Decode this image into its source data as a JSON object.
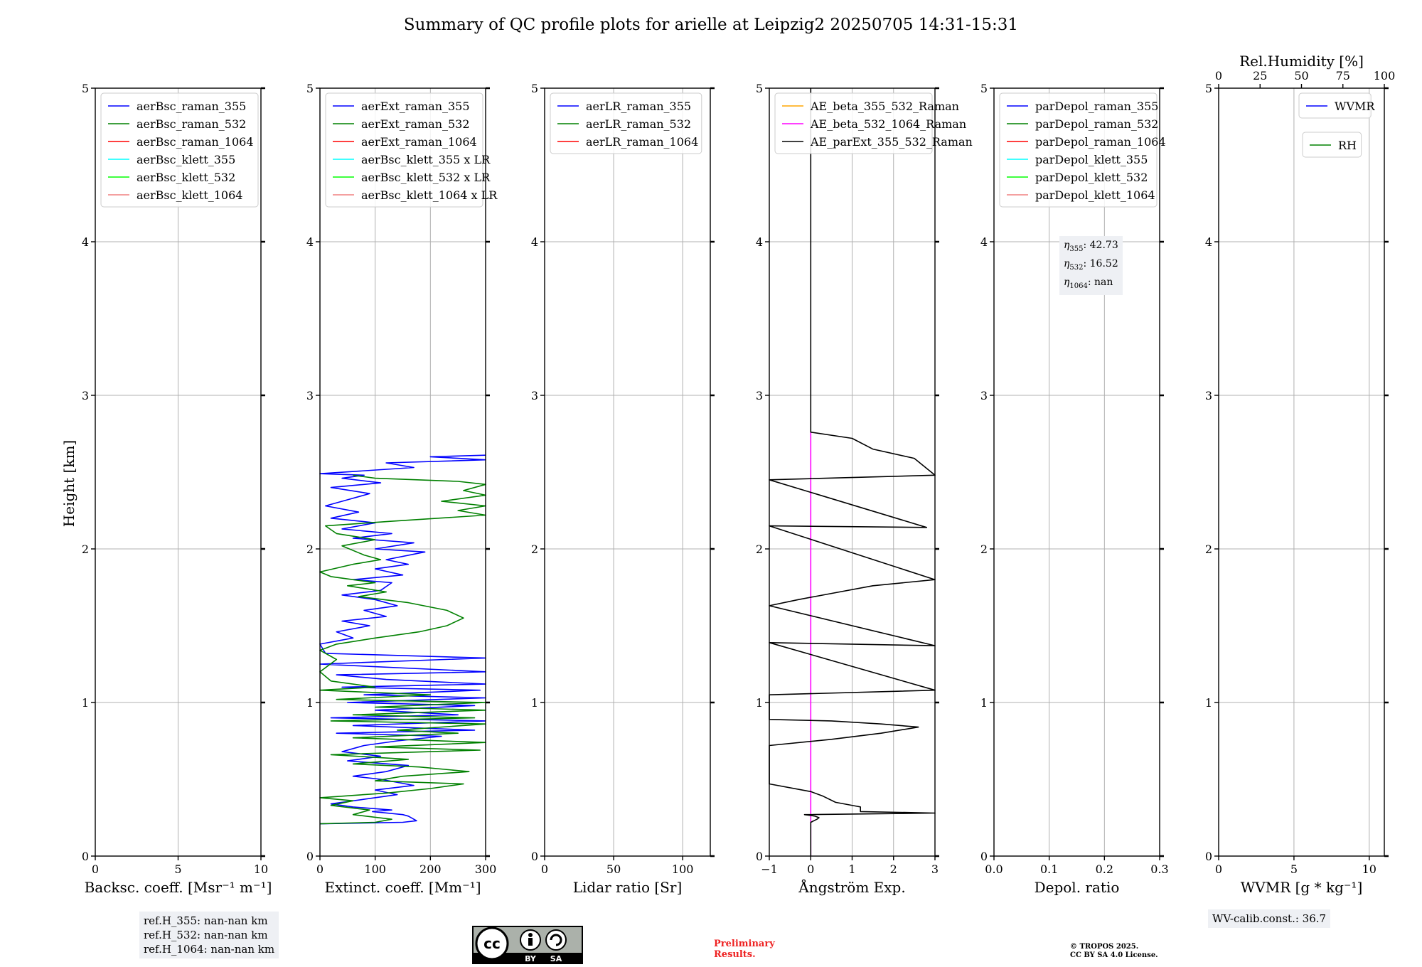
{
  "title": "Summary of QC profile plots for arielle at Leipzig2 20250705 14:31-15:31",
  "ylabel": "Height [km]",
  "y_ticks": [
    "0",
    "1",
    "2",
    "3",
    "4",
    "5"
  ],
  "colors": {
    "blue": "#0000ff",
    "green": "#008000",
    "red": "#ff0000",
    "cyan": "#00ffff",
    "lime": "#00ff00",
    "salmon": "#f08080",
    "orange": "#ffa500",
    "magenta": "#ff00ff",
    "black": "#000000",
    "grid": "#b0b0b0",
    "prelim": "#ee2222"
  },
  "chart_data": [
    {
      "type": "line",
      "panel": "backscatter",
      "xlabel": "Backsc. coeff. [Msr⁻¹ m⁻¹]",
      "xlim": [
        0,
        10
      ],
      "ylim": [
        0,
        5
      ],
      "x_ticks": [
        0,
        5,
        10
      ],
      "legend": [
        "aerBsc_raman_355",
        "aerBsc_raman_532",
        "aerBsc_raman_1064",
        "aerBsc_klett_355",
        "aerBsc_klett_532",
        "aerBsc_klett_1064"
      ],
      "legend_colors": [
        "blue",
        "green",
        "red",
        "cyan",
        "lime",
        "salmon"
      ],
      "series": []
    },
    {
      "type": "line",
      "panel": "extinction",
      "xlabel": "Extinct. coeff. [Mm⁻¹]",
      "xlim": [
        0,
        300
      ],
      "ylim": [
        0,
        5
      ],
      "x_ticks": [
        0,
        100,
        200,
        300
      ],
      "legend": [
        "aerExt_raman_355",
        "aerExt_raman_532",
        "aerExt_raman_1064",
        "aerBsc_klett_355 x LR",
        "aerBsc_klett_532 x LR",
        "aerBsc_klett_1064 x LR"
      ],
      "legend_colors": [
        "blue",
        "green",
        "red",
        "cyan",
        "lime",
        "salmon"
      ],
      "series": [
        {
          "name": "aerExt_raman_355",
          "color": "blue",
          "points": [
            [
              0,
              0.21
            ],
            [
              150,
              0.22
            ],
            [
              175,
              0.23
            ],
            [
              160,
              0.26
            ],
            [
              150,
              0.27
            ],
            [
              95,
              0.29
            ],
            [
              130,
              0.3
            ],
            [
              60,
              0.32
            ],
            [
              20,
              0.34
            ],
            [
              80,
              0.37
            ],
            [
              140,
              0.4
            ],
            [
              100,
              0.43
            ],
            [
              170,
              0.46
            ],
            [
              110,
              0.5
            ],
            [
              60,
              0.52
            ],
            [
              120,
              0.55
            ],
            [
              160,
              0.59
            ],
            [
              50,
              0.62
            ],
            [
              110,
              0.65
            ],
            [
              40,
              0.68
            ],
            [
              80,
              0.72
            ],
            [
              140,
              0.75
            ],
            [
              220,
              0.78
            ],
            [
              30,
              0.8
            ],
            [
              280,
              0.82
            ],
            [
              60,
              0.85
            ],
            [
              300,
              0.88
            ],
            [
              20,
              0.9
            ],
            [
              250,
              0.92
            ],
            [
              100,
              0.95
            ],
            [
              280,
              0.98
            ],
            [
              50,
              1.0
            ],
            [
              300,
              1.03
            ],
            [
              80,
              1.05
            ],
            [
              290,
              1.08
            ],
            [
              40,
              1.1
            ],
            [
              300,
              1.12
            ],
            [
              120,
              1.15
            ],
            [
              30,
              1.18
            ],
            [
              300,
              1.2
            ],
            [
              0,
              1.25
            ],
            [
              300,
              1.29
            ],
            [
              10,
              1.32
            ],
            [
              0,
              1.38
            ],
            [
              60,
              1.42
            ],
            [
              30,
              1.46
            ],
            [
              90,
              1.5
            ],
            [
              40,
              1.53
            ],
            [
              120,
              1.56
            ],
            [
              80,
              1.6
            ],
            [
              140,
              1.63
            ],
            [
              100,
              1.67
            ],
            [
              40,
              1.7
            ],
            [
              110,
              1.73
            ],
            [
              130,
              1.78
            ],
            [
              60,
              1.8
            ],
            [
              150,
              1.83
            ],
            [
              100,
              1.87
            ],
            [
              160,
              1.9
            ],
            [
              120,
              1.93
            ],
            [
              190,
              1.98
            ],
            [
              100,
              2.0
            ],
            [
              170,
              2.04
            ],
            [
              60,
              2.07
            ],
            [
              130,
              2.1
            ],
            [
              40,
              2.13
            ],
            [
              100,
              2.17
            ],
            [
              20,
              2.2
            ],
            [
              70,
              2.24
            ],
            [
              10,
              2.28
            ],
            [
              50,
              2.32
            ],
            [
              90,
              2.36
            ],
            [
              20,
              2.4
            ],
            [
              110,
              2.43
            ],
            [
              40,
              2.46
            ],
            [
              80,
              2.48
            ],
            [
              0,
              2.49
            ],
            [
              170,
              2.53
            ],
            [
              120,
              2.56
            ],
            [
              300,
              2.58
            ],
            [
              200,
              2.6
            ],
            [
              300,
              2.61
            ]
          ]
        },
        {
          "name": "aerExt_raman_532",
          "color": "green",
          "points": [
            [
              0,
              0.21
            ],
            [
              100,
              0.22
            ],
            [
              130,
              0.24
            ],
            [
              60,
              0.27
            ],
            [
              90,
              0.3
            ],
            [
              20,
              0.33
            ],
            [
              60,
              0.36
            ],
            [
              0,
              0.38
            ],
            [
              120,
              0.41
            ],
            [
              200,
              0.44
            ],
            [
              260,
              0.47
            ],
            [
              100,
              0.49
            ],
            [
              150,
              0.52
            ],
            [
              270,
              0.55
            ],
            [
              180,
              0.58
            ],
            [
              60,
              0.6
            ],
            [
              160,
              0.63
            ],
            [
              20,
              0.66
            ],
            [
              290,
              0.69
            ],
            [
              100,
              0.71
            ],
            [
              300,
              0.74
            ],
            [
              60,
              0.77
            ],
            [
              250,
              0.8
            ],
            [
              140,
              0.82
            ],
            [
              300,
              0.86
            ],
            [
              20,
              0.88
            ],
            [
              280,
              0.9
            ],
            [
              60,
              0.92
            ],
            [
              300,
              0.95
            ],
            [
              100,
              0.97
            ],
            [
              300,
              1.0
            ],
            [
              30,
              1.02
            ],
            [
              200,
              1.05
            ],
            [
              0,
              1.08
            ],
            [
              100,
              1.1
            ],
            [
              20,
              1.14
            ],
            [
              0,
              1.2
            ],
            [
              30,
              1.28
            ],
            [
              0,
              1.34
            ],
            [
              30,
              1.38
            ],
            [
              100,
              1.42
            ],
            [
              180,
              1.46
            ],
            [
              230,
              1.5
            ],
            [
              260,
              1.55
            ],
            [
              230,
              1.6
            ],
            [
              160,
              1.65
            ],
            [
              70,
              1.69
            ],
            [
              120,
              1.72
            ],
            [
              50,
              1.76
            ],
            [
              100,
              1.78
            ],
            [
              20,
              1.82
            ],
            [
              0,
              1.85
            ],
            [
              60,
              1.9
            ],
            [
              110,
              1.93
            ],
            [
              80,
              1.96
            ],
            [
              40,
              2.02
            ],
            [
              100,
              2.06
            ],
            [
              30,
              2.1
            ],
            [
              10,
              2.15
            ],
            [
              130,
              2.18
            ],
            [
              300,
              2.22
            ],
            [
              250,
              2.25
            ],
            [
              300,
              2.28
            ],
            [
              220,
              2.31
            ],
            [
              300,
              2.35
            ],
            [
              260,
              2.38
            ],
            [
              300,
              2.42
            ],
            [
              250,
              2.44
            ],
            [
              100,
              2.46
            ],
            [
              60,
              2.48
            ]
          ]
        }
      ]
    },
    {
      "type": "line",
      "panel": "lidar_ratio",
      "xlabel": "Lidar ratio [Sr]",
      "xlim": [
        0,
        120
      ],
      "ylim": [
        0,
        5
      ],
      "x_ticks": [
        0,
        50,
        100
      ],
      "legend": [
        "aerLR_raman_355",
        "aerLR_raman_532",
        "aerLR_raman_1064"
      ],
      "legend_colors": [
        "blue",
        "green",
        "red"
      ],
      "series": []
    },
    {
      "type": "line",
      "panel": "angstrom",
      "xlabel": "Ångström Exp.",
      "xlim": [
        -1,
        3
      ],
      "ylim": [
        0,
        5
      ],
      "x_ticks": [
        -1,
        0,
        1,
        2,
        3
      ],
      "x_tick_labels": [
        "−1",
        "0",
        "1",
        "2",
        "3"
      ],
      "legend": [
        "AE_beta_355_532_Raman",
        "AE_beta_532_1064_Raman",
        "AE_parExt_355_532_Raman"
      ],
      "legend_colors": [
        "orange",
        "magenta",
        "black"
      ],
      "series": [
        {
          "name": "AE_beta_532_1064_Raman",
          "color": "magenta",
          "points": [
            [
              0,
              0.0
            ],
            [
              0,
              2.76
            ]
          ]
        },
        {
          "name": "AE_parExt_355_532_Raman",
          "color": "black",
          "points": [
            [
              0,
              0.0
            ],
            [
              0,
              0.22
            ],
            [
              0.15,
              0.24
            ],
            [
              0.2,
              0.25
            ],
            [
              0.1,
              0.26
            ],
            [
              -0.15,
              0.27
            ],
            [
              3,
              0.28
            ],
            [
              1.2,
              0.29
            ],
            [
              1.2,
              0.32
            ],
            [
              0.6,
              0.35
            ],
            [
              0.3,
              0.39
            ],
            [
              0,
              0.42
            ],
            [
              -1,
              0.47
            ],
            [
              -1,
              0.72
            ],
            [
              0.5,
              0.76
            ],
            [
              1.7,
              0.8
            ],
            [
              2.6,
              0.84
            ],
            [
              1.7,
              0.86
            ],
            [
              0.5,
              0.88
            ],
            [
              -1,
              0.89
            ],
            [
              -1,
              1.05
            ],
            [
              3,
              1.08
            ],
            [
              -1,
              1.39
            ],
            [
              3,
              1.37
            ],
            [
              -1,
              1.63
            ],
            [
              -0.3,
              1.67
            ],
            [
              0.5,
              1.71
            ],
            [
              1.5,
              1.76
            ],
            [
              3,
              1.8
            ],
            [
              -1,
              2.15
            ],
            [
              2.8,
              2.14
            ],
            [
              -1,
              2.45
            ],
            [
              3,
              2.48
            ],
            [
              2.5,
              2.59
            ],
            [
              1.5,
              2.65
            ],
            [
              1.0,
              2.72
            ],
            [
              0,
              2.76
            ],
            [
              0,
              5.0
            ]
          ]
        }
      ]
    },
    {
      "type": "line",
      "panel": "depol",
      "xlabel": "Depol. ratio",
      "xlim": [
        0,
        0.3
      ],
      "ylim": [
        0,
        5
      ],
      "x_ticks": [
        0,
        0.1,
        0.2,
        0.3
      ],
      "x_tick_labels": [
        "0.0",
        "0.1",
        "0.2",
        "0.3"
      ],
      "legend": [
        "parDepol_raman_355",
        "parDepol_raman_532",
        "parDepol_raman_1064",
        "parDepol_klett_355",
        "parDepol_klett_532",
        "parDepol_klett_1064"
      ],
      "legend_colors": [
        "blue",
        "green",
        "red",
        "cyan",
        "lime",
        "salmon"
      ],
      "series": []
    },
    {
      "type": "line",
      "panel": "wvmr",
      "xlabel": "WVMR [g * kg⁻¹]",
      "xlim": [
        0,
        11
      ],
      "ylim": [
        0,
        5
      ],
      "x_ticks": [
        0,
        5,
        10
      ],
      "top_axis": {
        "label": "Rel.Humidity [%]",
        "lim": [
          0,
          100
        ],
        "ticks": [
          0,
          25,
          50,
          75,
          100
        ]
      },
      "legend": [
        "WVMR"
      ],
      "legend_colors": [
        "blue"
      ],
      "legend2": [
        "RH"
      ],
      "legend2_colors": [
        "green"
      ],
      "series": []
    }
  ],
  "eta_box": {
    "l1": "355: 42.73",
    "l2": "532: 16.52",
    "l3": "1064: nan"
  },
  "ref_box": {
    "l1": "ref.H_355: nan-nan km",
    "l2": "ref.H_532: nan-nan km",
    "l3": "ref.H_1064: nan-nan km"
  },
  "wv_box": "WV-calib.const.: 36.7",
  "prelim": {
    "l1": "Preliminary",
    "l2": "Results."
  },
  "copyright": {
    "l1": "© TROPOS 2025.",
    "l2": "CC BY SA 4.0 License."
  },
  "cc_badge": {
    "main": "cc",
    "by": "BY",
    "sa": "SA"
  }
}
